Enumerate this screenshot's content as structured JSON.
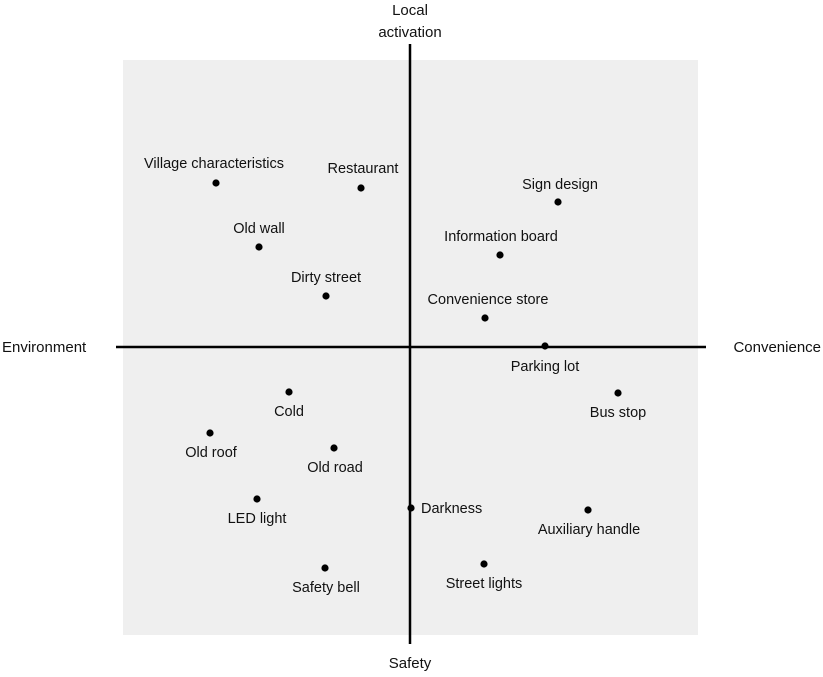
{
  "axes": {
    "top": [
      "Local",
      "activation"
    ],
    "bottom": "Safety",
    "left": "Environment",
    "right": "Convenience"
  },
  "points": [
    {
      "label": "Village characteristics"
    },
    {
      "label": "Restaurant"
    },
    {
      "label": "Sign design"
    },
    {
      "label": "Old wall"
    },
    {
      "label": "Information board"
    },
    {
      "label": "Dirty street"
    },
    {
      "label": "Convenience store"
    },
    {
      "label": "Parking lot"
    },
    {
      "label": "Bus stop"
    },
    {
      "label": "Cold"
    },
    {
      "label": "Old roof"
    },
    {
      "label": "Old road"
    },
    {
      "label": "LED light"
    },
    {
      "label": "Darkness"
    },
    {
      "label": "Auxiliary handle"
    },
    {
      "label": "Safety bell"
    },
    {
      "label": "Street lights"
    }
  ]
}
